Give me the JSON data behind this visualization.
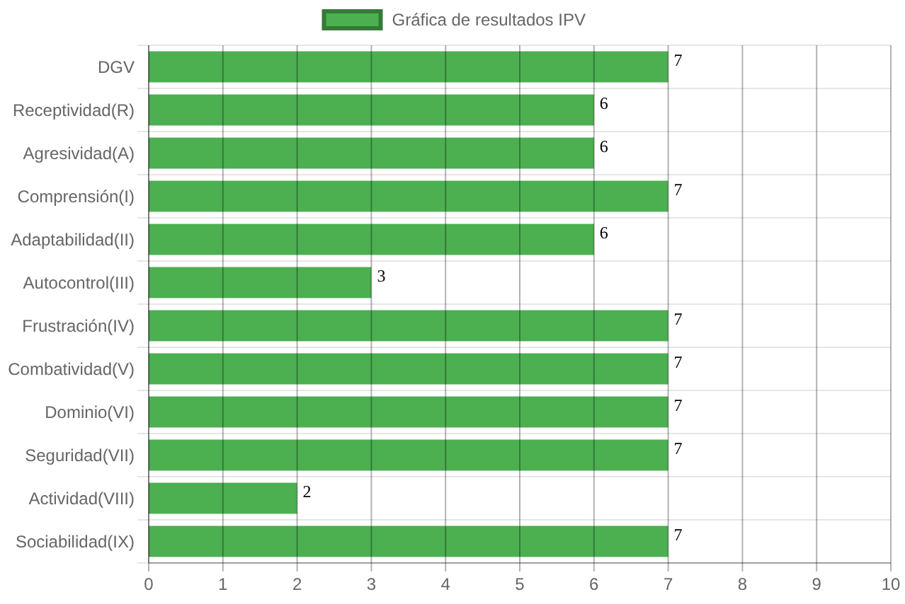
{
  "chart_data": {
    "type": "bar",
    "orientation": "horizontal",
    "categories": [
      "DGV",
      "Receptividad(R)",
      "Agresividad(A)",
      "Comprensión(I)",
      "Adaptabilidad(II)",
      "Autocontrol(III)",
      "Frustración(IV)",
      "Combatividad(V)",
      "Dominio(VI)",
      "Seguridad(VII)",
      "Actividad(VIII)",
      "Sociabilidad(IX)"
    ],
    "series": [
      {
        "name": "Gráfica de resultados IPV",
        "color": "#4caf50",
        "values": [
          7,
          6,
          6,
          7,
          6,
          3,
          7,
          7,
          7,
          7,
          2,
          7
        ]
      }
    ],
    "xlim": [
      0,
      10
    ],
    "xticks": [
      0,
      1,
      2,
      3,
      4,
      5,
      6,
      7,
      8,
      9,
      10
    ],
    "grid": true,
    "legend": "top",
    "data_labels": true
  }
}
